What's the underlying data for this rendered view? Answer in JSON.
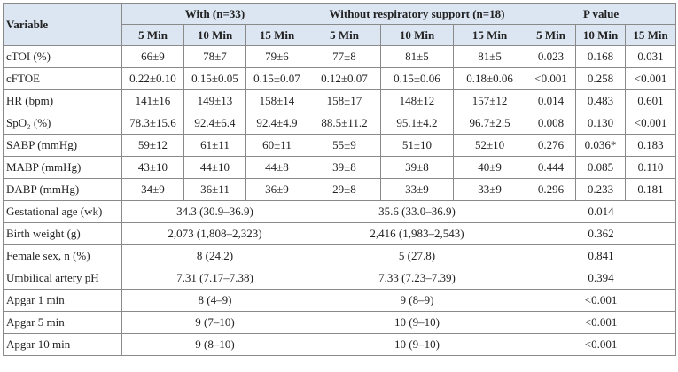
{
  "header": {
    "variable": "Variable",
    "groups": [
      "With (n=33)",
      "Without respiratory support (n=18)",
      "P value"
    ],
    "subheaders": [
      "5 Min",
      "10 Min",
      "15 Min",
      "5 Min",
      "10 Min",
      "15 Min",
      "5 Min",
      "10 Min",
      "15 Min"
    ]
  },
  "table": {
    "rows": [
      [
        "cTOI (%)",
        "66±9",
        "78±7",
        "79±6",
        "77±8",
        "81±5",
        "81±5",
        "0.023",
        "0.168",
        "0.031"
      ],
      [
        "cFTOE",
        "0.22±0.10",
        "0.15±0.05",
        "0.15±0.07",
        "0.12±0.07",
        "0.15±0.06",
        "0.18±0.06",
        "<0.001",
        "0.258",
        "<0.001"
      ],
      [
        "HR (bpm)",
        "141±16",
        "149±13",
        "158±14",
        "158±17",
        "148±12",
        "157±12",
        "0.014",
        "0.483",
        "0.601"
      ],
      [
        "SpO₂ (%)",
        "78.3±15.6",
        "92.4±6.4",
        "92.4±4.9",
        "88.5±11.2",
        "95.1±4.2",
        "96.7±2.5",
        "0.008",
        "0.130",
        "<0.001"
      ],
      [
        "SABP (mmHg)",
        "59±12",
        "61±11",
        "60±11",
        "55±9",
        "51±10",
        "52±10",
        "0.276",
        "0.036*",
        "0.183"
      ],
      [
        "MABP (mmHg)",
        "43±10",
        "44±10",
        "44±8",
        "39±8",
        "39±8",
        "40±9",
        "0.444",
        "0.085",
        "0.110"
      ],
      [
        "DABP (mmHg)",
        "34±9",
        "36±11",
        "36±9",
        "29±8",
        "33±9",
        "33±9",
        "0.296",
        "0.233",
        "0.181"
      ],
      [
        "Gestational age (wk)",
        "34.3 (30.9–36.9)",
        "35.6 (33.0–36.9)",
        "0.014"
      ],
      [
        "Birth weight (g)",
        "2,073 (1,808–2,323)",
        "2,416 (1,983–2,543)",
        "0.362"
      ],
      [
        "Female sex, n (%)",
        "8 (24.2)",
        "5 (27.8)",
        "0.841"
      ],
      [
        "Umbilical artery pH",
        "7.31 (7.17–7.38)",
        "7.33 (7.23–7.39)",
        "0.394"
      ],
      [
        "Apgar 1 min",
        "8 (4–9)",
        "9 (8–9)",
        "<0.001"
      ],
      [
        "Apgar 5 min",
        "9 (7–10)",
        "10 (9–10)",
        "<0.001"
      ],
      [
        "Apgar 10 min",
        "9 (8–10)",
        "10 (9–10)",
        "<0.001"
      ]
    ]
  }
}
